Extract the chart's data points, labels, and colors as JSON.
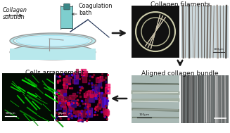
{
  "background_color": "#ffffff",
  "label_collagen_solution": "Collagen\nsolution",
  "label_coagulation_bath": "Coagulation\nbath",
  "label_collagen_filaments": "Collagen filaments",
  "label_aligned_bundle": "Aligned collagen bundle",
  "label_cells_arrangement": "Cells arrangement",
  "scalebar_100um": "100μm",
  "scalebar_500um": "500μm",
  "scalebar_50um": "50μm",
  "dish_color": "#b8e8ec",
  "dish_edge_color": "#999999",
  "dish_inner_color": "#d8f4f8",
  "bottle_color": "#7ecece",
  "bottle_edge_color": "#446666",
  "arrow_color": "#1a1a1a",
  "liquid_color": "#c8f0f8",
  "thread_color": "#223355",
  "photo1_dark": "#111111",
  "photo2_light": "#c0d8de",
  "green_bg": "#050f05",
  "red_bg": "#060008",
  "sem_left_bg": "#a0b0b0",
  "sem_right_bg": "#787878"
}
